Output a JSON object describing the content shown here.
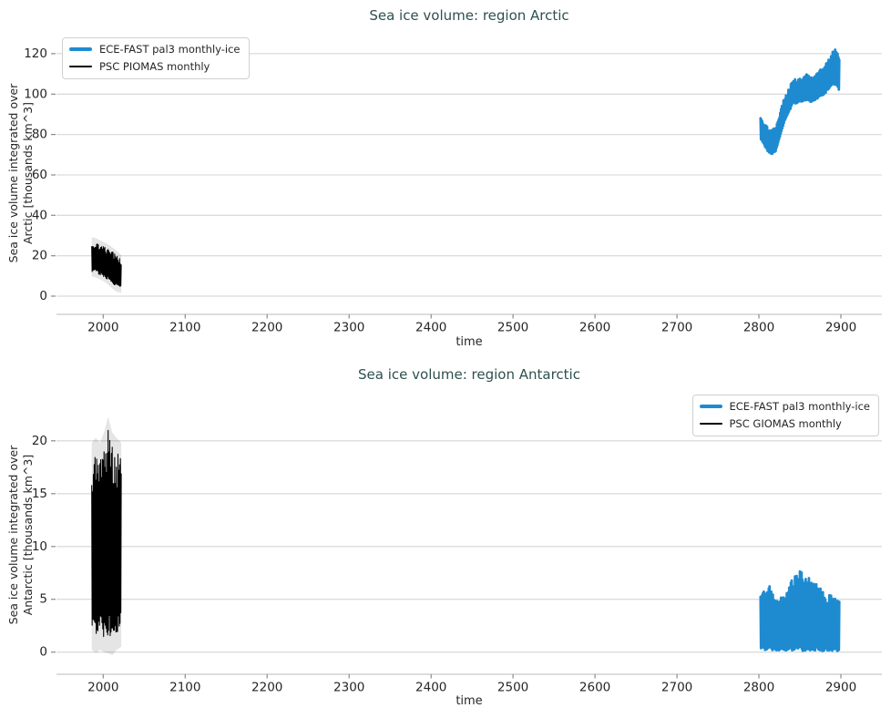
{
  "style": {
    "background": "#ffffff",
    "title_color": "#2e5050",
    "text_color": "#262626",
    "grid_color": "#dcdcdc",
    "spine_color": "#d2d2d2",
    "tick_color": "#8a8a8a",
    "accent_blue": "#1e8bd1",
    "series_black": "#000000"
  },
  "chart_data": [
    {
      "type": "line",
      "title": "Sea ice volume: region Arctic",
      "xlabel": "time",
      "ylabel_lines": [
        "Sea ice volume integrated over",
        "Arctic [thousands km^3]"
      ],
      "xlim": [
        1943,
        2950
      ],
      "ylim": [
        -9,
        130.8
      ],
      "xticks": [
        2000,
        2100,
        2200,
        2300,
        2400,
        2500,
        2600,
        2700,
        2800,
        2900
      ],
      "yticks": [
        0,
        20,
        40,
        60,
        80,
        100,
        120
      ],
      "grid": "horizontal",
      "legend_position": "upper-left",
      "series": [
        {
          "name": "ECE-FAST pal3 monthly-ice",
          "color": "#1e8bd1",
          "line_width": 2.8,
          "halo": false,
          "note": "dense monthly seasonal cycle, shown as min-max envelope per year",
          "envelope": {
            "x": [
              2802,
              2808,
              2815,
              2821,
              2830,
              2841,
              2850,
              2858,
              2865,
              2872,
              2880,
              2886,
              2891,
              2895,
              2898
            ],
            "top": [
              90,
              85,
              82,
              84,
              97,
              107,
              108,
              110,
              109,
              111,
              114,
              118,
              122,
              122,
              119
            ],
            "bottom": [
              78,
              73,
              70,
              72,
              85,
              95,
              96,
              97,
              96,
              98,
              100,
              103,
              105,
              104,
              101
            ]
          }
        },
        {
          "name": "PSC PIOMAS monthly",
          "color": "#000000",
          "line_width": 1.1,
          "halo": true,
          "halo_pad": 2.2,
          "note": "dense monthly seasonal cycle, shown as min-max envelope per year",
          "envelope": {
            "x": [
              1986,
              1991,
              1996,
              2001,
              2006,
              2011,
              2016,
              2020,
              2022
            ],
            "top": [
              27,
              26.5,
              25.5,
              24.5,
              23.5,
              22,
              20.5,
              19,
              18
            ],
            "bottom": [
              12,
              11.5,
              10.5,
              9.5,
              8,
              6,
              4.5,
              4,
              3.8
            ]
          }
        }
      ]
    },
    {
      "type": "line",
      "title": "Sea ice volume: region Antarctic",
      "xlabel": "time",
      "ylabel_lines": [
        "Sea ice volume integrated over",
        "Antarctic [thousands km^3]"
      ],
      "xlim": [
        1943,
        2950
      ],
      "ylim": [
        -2.1,
        24.3
      ],
      "xticks": [
        2000,
        2100,
        2200,
        2300,
        2400,
        2500,
        2600,
        2700,
        2800,
        2900
      ],
      "yticks": [
        0,
        5,
        10,
        15,
        20
      ],
      "grid": "horizontal",
      "legend_position": "upper-right",
      "series": [
        {
          "name": "ECE-FAST pal3 monthly-ice",
          "color": "#1e8bd1",
          "line_width": 2.8,
          "halo": false,
          "note": "dense monthly seasonal cycle, shown as min-max envelope per year",
          "envelope": {
            "x": [
              2802,
              2808,
              2813,
              2818,
              2823,
              2828,
              2834,
              2840,
              2846,
              2850,
              2855,
              2860,
              2865,
              2870,
              2876,
              2882,
              2888,
              2893,
              2898
            ],
            "top": [
              6.2,
              5.7,
              6.4,
              5.4,
              4.7,
              5.3,
              5.6,
              6.8,
              7.6,
              8.1,
              7.0,
              7.4,
              6.4,
              6.7,
              6.0,
              5.3,
              5.6,
              5.2,
              4.9
            ],
            "bottom": [
              0.15,
              0.1,
              0.2,
              0.15,
              0.1,
              0.15,
              0.1,
              0.15,
              0.2,
              0.15,
              0.1,
              0.15,
              0.1,
              0.15,
              0.1,
              0.1,
              0.15,
              0.1,
              0.1
            ]
          }
        },
        {
          "name": "PSC GIOMAS monthly",
          "color": "#000000",
          "line_width": 1.1,
          "halo": true,
          "halo_pad": 1.3,
          "note": "dense monthly seasonal cycle, shown as min-max envelope per year",
          "envelope": {
            "x": [
              1986,
              1991,
              1996,
              2001,
              2006,
              2011,
              2016,
              2020,
              2022
            ],
            "top": [
              18.5,
              19,
              18.5,
              19.5,
              21,
              19.5,
              19,
              18.7,
              18.5
            ],
            "bottom": [
              1.5,
              1.2,
              1.5,
              1.3,
              1.2,
              1.0,
              1.5,
              1.7,
              1.8
            ]
          }
        }
      ]
    }
  ]
}
